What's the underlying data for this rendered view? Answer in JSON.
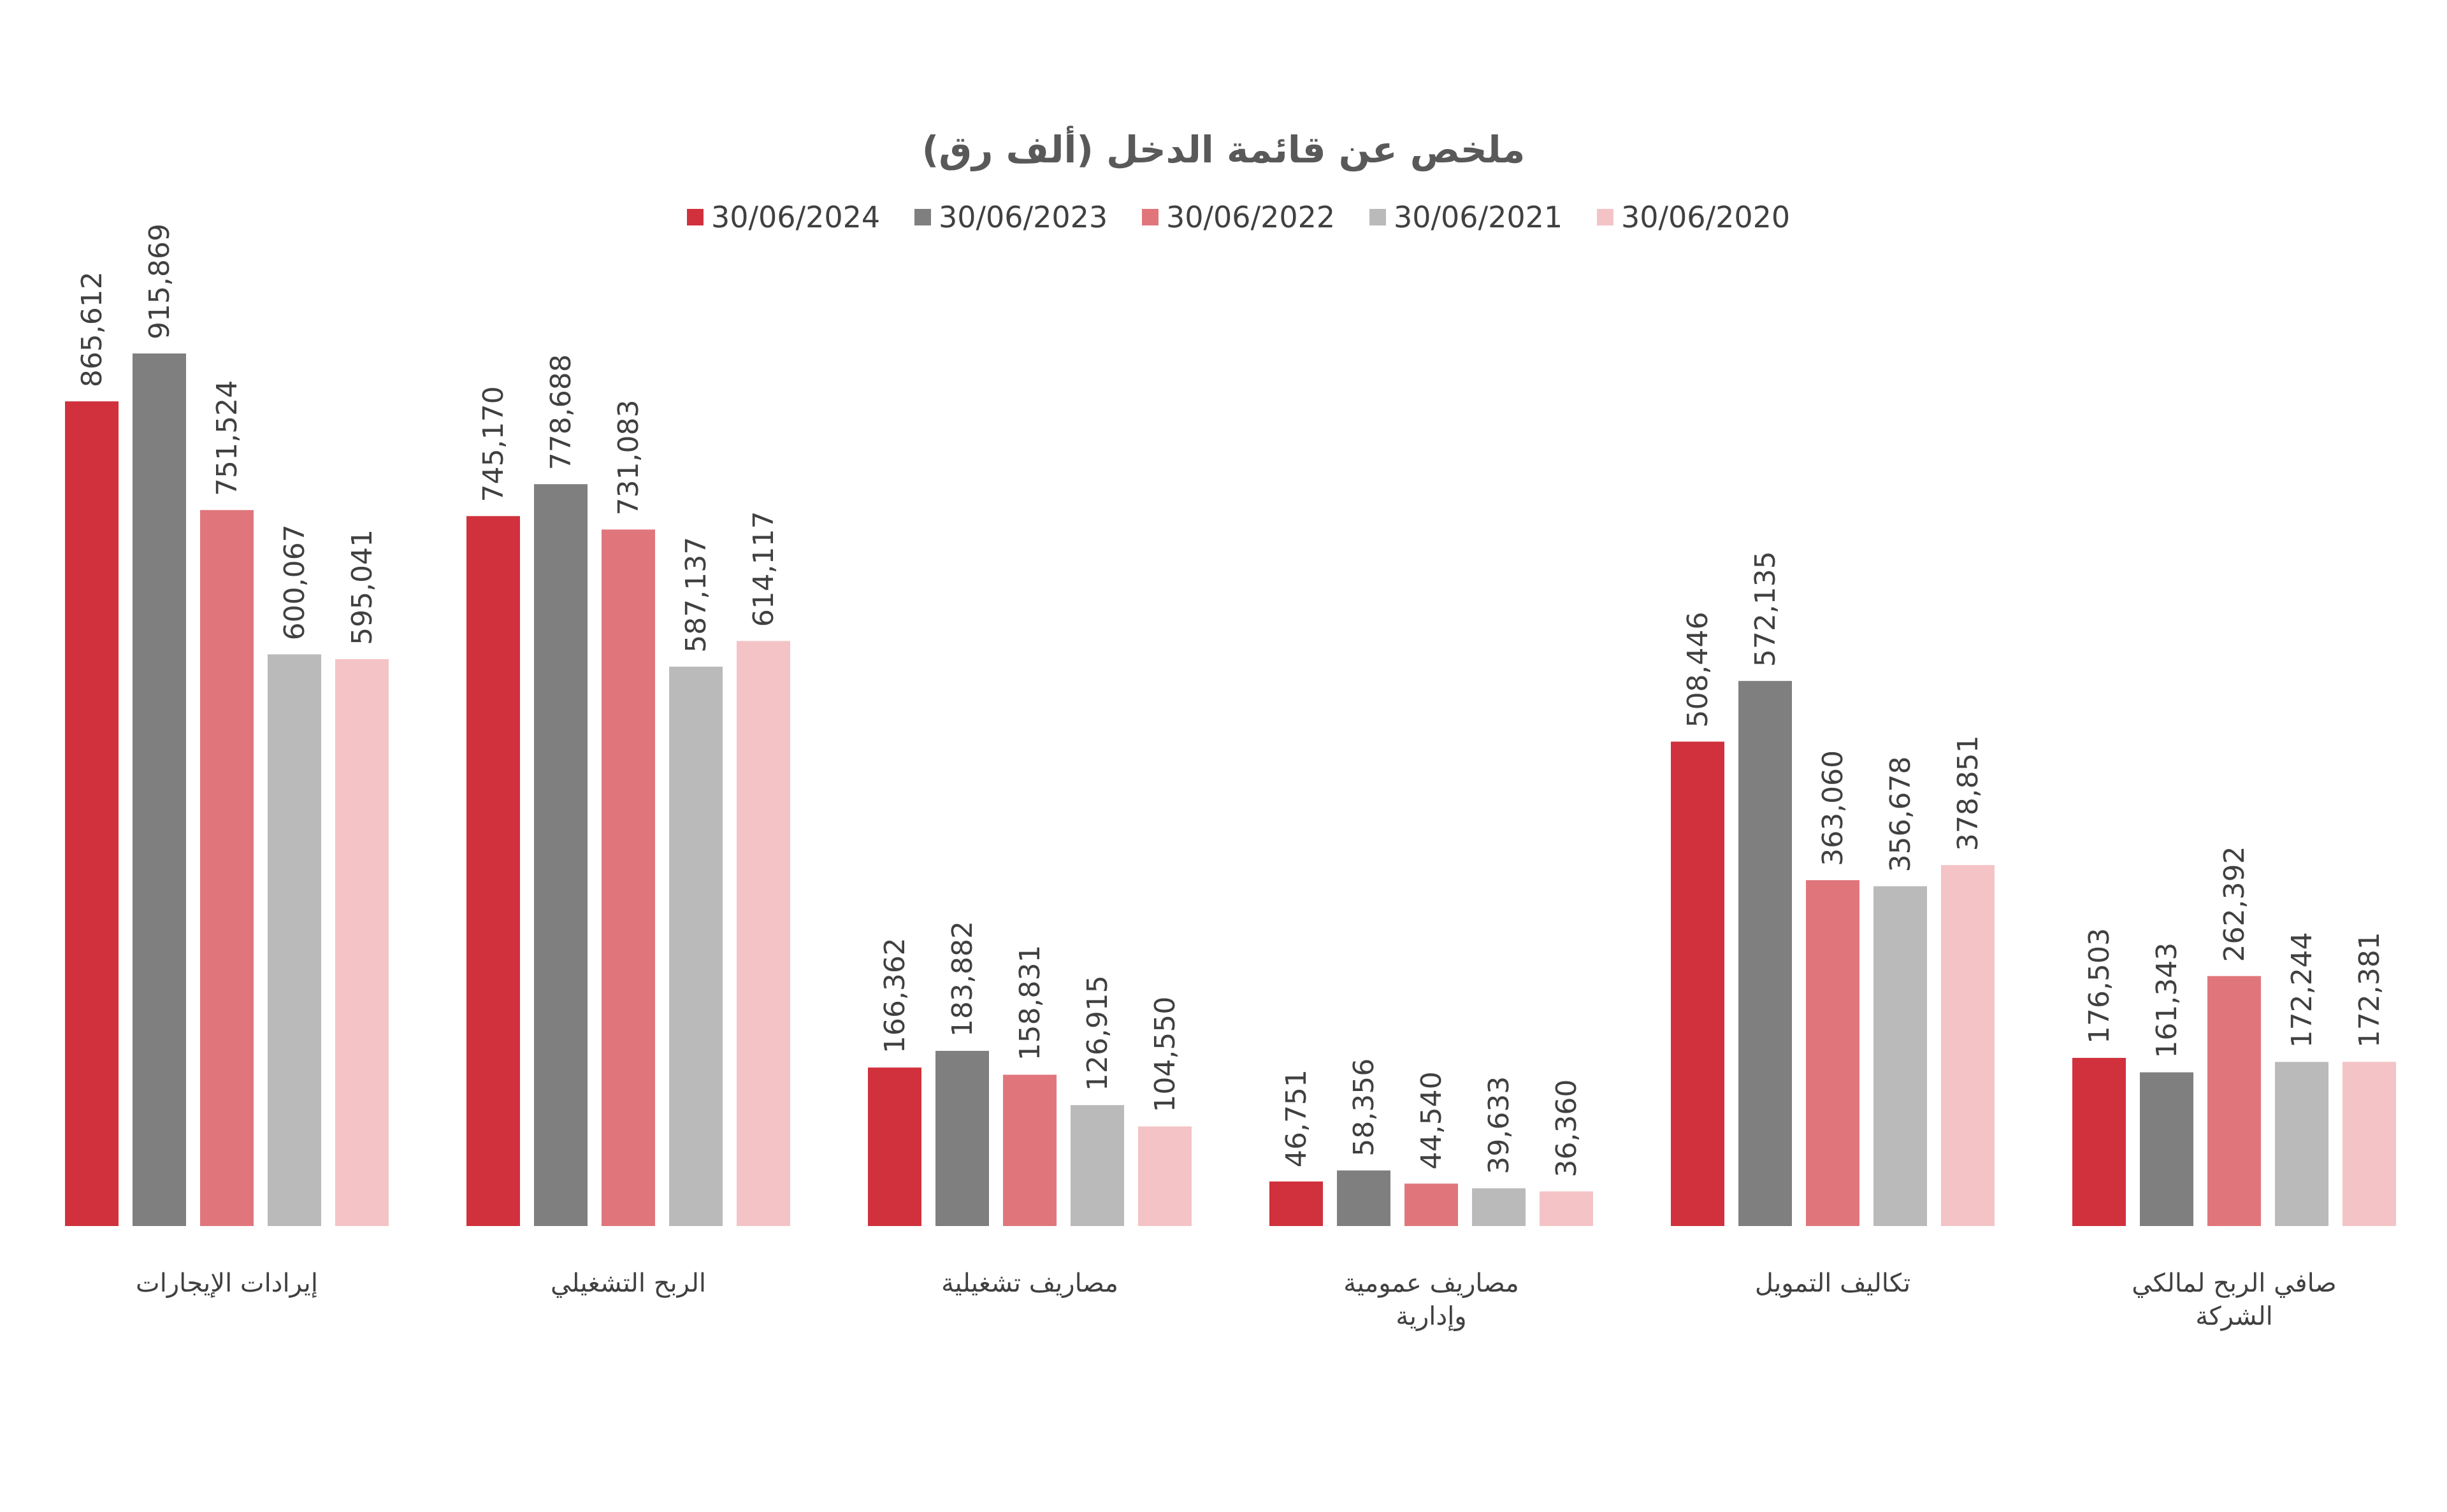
{
  "chart_data": {
    "type": "bar",
    "title": "ملخص عن قائمة الدخل (ألف رق)",
    "categories": [
      [
        "إيرادات الإيجارات"
      ],
      [
        "الربح التشغيلي"
      ],
      [
        "مصاريف تشغيلية"
      ],
      [
        "مصاريف عمومية",
        "وإدارية"
      ],
      [
        "تكاليف التمويل"
      ],
      [
        "صافي الربح لمالكي",
        "الشركة"
      ]
    ],
    "series": [
      {
        "name": "30/06/2024",
        "color": "#d0313d",
        "values": [
          865612,
          745170,
          166362,
          46751,
          508446,
          176503
        ]
      },
      {
        "name": "30/06/2023",
        "color": "#7f7f7f",
        "values": [
          915869,
          778688,
          183882,
          58356,
          572135,
          161343
        ]
      },
      {
        "name": "30/06/2022",
        "color": "#e0767c",
        "values": [
          751524,
          731083,
          158831,
          44540,
          363060,
          262392
        ]
      },
      {
        "name": "30/06/2021",
        "color": "#bababa",
        "values": [
          600067,
          587137,
          126915,
          39633,
          356678,
          172244
        ]
      },
      {
        "name": "30/06/2020",
        "color": "#f4c3c6",
        "values": [
          595041,
          614117,
          104550,
          36360,
          378851,
          172381
        ]
      }
    ],
    "data_labels": [
      [
        "865,612",
        "745,170",
        "166,362",
        "46,751",
        "508,446",
        "176,503"
      ],
      [
        "915,869",
        "778,688",
        "183,882",
        "58,356",
        "572,135",
        "161,343"
      ],
      [
        "751,524",
        "731,083",
        "158,831",
        "44,540",
        "363,060",
        "262,392"
      ],
      [
        "600,067",
        "587,137",
        "126,915",
        "39,633",
        "356,678",
        "172,244"
      ],
      [
        "595,041",
        "614,117",
        "104,550",
        "36,360",
        "378,851",
        "172,381"
      ]
    ],
    "ylim": [
      0,
      1000000
    ],
    "grid": false,
    "legend_position": "top"
  }
}
